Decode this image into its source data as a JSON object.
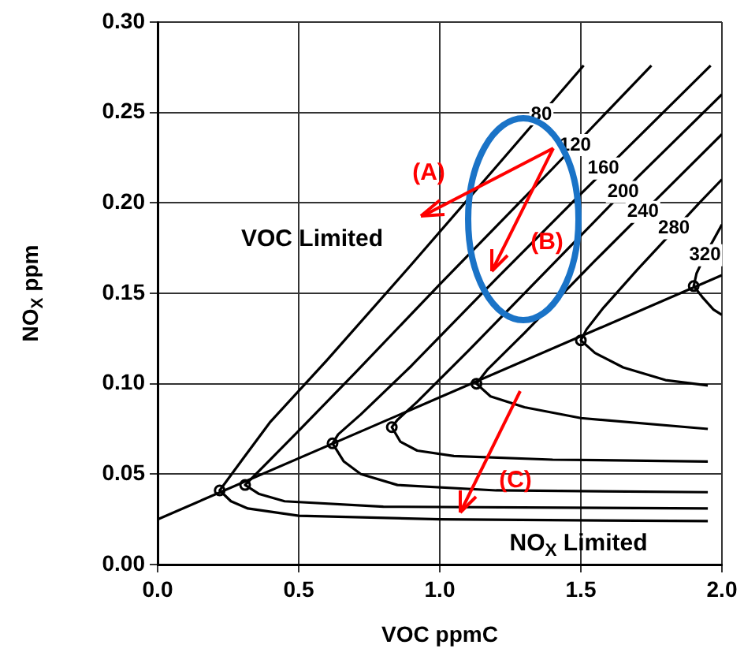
{
  "chart_data": {
    "type": "line",
    "xlabel": "VOC ppmC",
    "ylabel": "NO$_{X}$ ppm",
    "xlim": [
      0,
      2
    ],
    "xticks": [
      {
        "value": 0,
        "label": "0.0"
      },
      0.5,
      {
        "value": 1,
        "label": "1.0"
      },
      1.5,
      {
        "value": 2,
        "label": "2.0"
      }
    ],
    "ylim": [
      0,
      0.3
    ],
    "yticks": [
      {
        "value": 0,
        "label": "0.00"
      },
      0.05,
      {
        "value": 0.1,
        "label": "0.10"
      },
      0.15,
      {
        "value": 0.2,
        "label": "0.20"
      },
      0.25,
      {
        "value": 0.3,
        "label": "0.30"
      }
    ],
    "grid": true,
    "legend": false,
    "series": [
      {
        "type": "line",
        "color": "#000000",
        "x": [
          1.51,
          1.2,
          0.9,
          0.6,
          0.4,
          0.3,
          0.22,
          0.26,
          0.32,
          0.5,
          1.0,
          1.95
        ],
        "values": [
          0.276,
          0.22,
          0.166,
          0.113,
          0.079,
          0.058,
          0.041,
          0.035,
          0.031,
          0.027,
          0.025,
          0.024
        ]
      },
      {
        "type": "line",
        "color": "#000000",
        "x": [
          1.75,
          1.4,
          1.0,
          0.7,
          0.5,
          0.38,
          0.31,
          0.36,
          0.45,
          0.8,
          1.95
        ],
        "values": [
          0.276,
          0.219,
          0.155,
          0.106,
          0.074,
          0.055,
          0.044,
          0.039,
          0.035,
          0.032,
          0.031
        ]
      },
      {
        "type": "line",
        "color": "#000000",
        "x": [
          1.96,
          1.5,
          1.2,
          0.9,
          0.72,
          0.64,
          0.62,
          0.66,
          0.72,
          0.85,
          1.2,
          1.95
        ],
        "values": [
          0.276,
          0.205,
          0.158,
          0.11,
          0.083,
          0.072,
          0.067,
          0.057,
          0.05,
          0.044,
          0.041,
          0.04
        ]
      },
      {
        "type": "line",
        "color": "#000000",
        "x": [
          2.0,
          1.7,
          1.4,
          1.1,
          0.92,
          0.85,
          0.83,
          0.86,
          0.92,
          1.05,
          1.4,
          1.95
        ],
        "values": [
          0.26,
          0.214,
          0.166,
          0.118,
          0.09,
          0.08,
          0.076,
          0.068,
          0.063,
          0.06,
          0.058,
          0.057
        ]
      },
      {
        "type": "line",
        "color": "#000000",
        "x": [
          2.0,
          1.8,
          1.55,
          1.3,
          1.17,
          1.13,
          1.18,
          1.3,
          1.5,
          1.95
        ],
        "values": [
          0.238,
          0.207,
          0.168,
          0.128,
          0.108,
          0.1,
          0.093,
          0.087,
          0.081,
          0.075
        ]
      },
      {
        "type": "line",
        "color": "#000000",
        "x": [
          2.0,
          1.92,
          1.7,
          1.58,
          1.52,
          1.5,
          1.55,
          1.65,
          1.8,
          1.95
        ],
        "values": [
          0.213,
          0.2,
          0.163,
          0.142,
          0.13,
          0.124,
          0.117,
          0.109,
          0.102,
          0.099
        ]
      },
      {
        "type": "line",
        "color": "#000000",
        "x": [
          2.0,
          1.94,
          1.91,
          1.9,
          1.93,
          1.97,
          2.0
        ],
        "values": [
          0.188,
          0.171,
          0.161,
          0.154,
          0.148,
          0.141,
          0.138
        ]
      },
      {
        "type": "line",
        "color": "#000000",
        "x": [
          0,
          2
        ],
        "values": [
          0.025,
          0.16
        ]
      },
      {
        "type": "scatter",
        "color": "#000000",
        "marker": "circle",
        "x": [
          0.22,
          0.31,
          0.62,
          0.83,
          1.13,
          1.5,
          1.9
        ],
        "values": [
          0.041,
          0.044,
          0.067,
          0.076,
          0.1,
          0.124,
          0.154
        ]
      }
    ],
    "annotations": [
      {
        "text": "80",
        "x": 1.36,
        "y": 0.249
      },
      {
        "text": "120",
        "x": 1.48,
        "y": 0.232
      },
      {
        "text": "160",
        "x": 1.58,
        "y": 0.219
      },
      {
        "text": "200",
        "x": 1.65,
        "y": 0.206
      },
      {
        "text": "240",
        "x": 1.72,
        "y": 0.195
      },
      {
        "text": "280",
        "x": 1.83,
        "y": 0.186
      },
      {
        "text": "320",
        "x": 1.94,
        "y": 0.171
      },
      "VOC Limited",
      "(A)",
      "(B)",
      "NO$_{X}$ Limited",
      "(C)"
    ]
  }
}
